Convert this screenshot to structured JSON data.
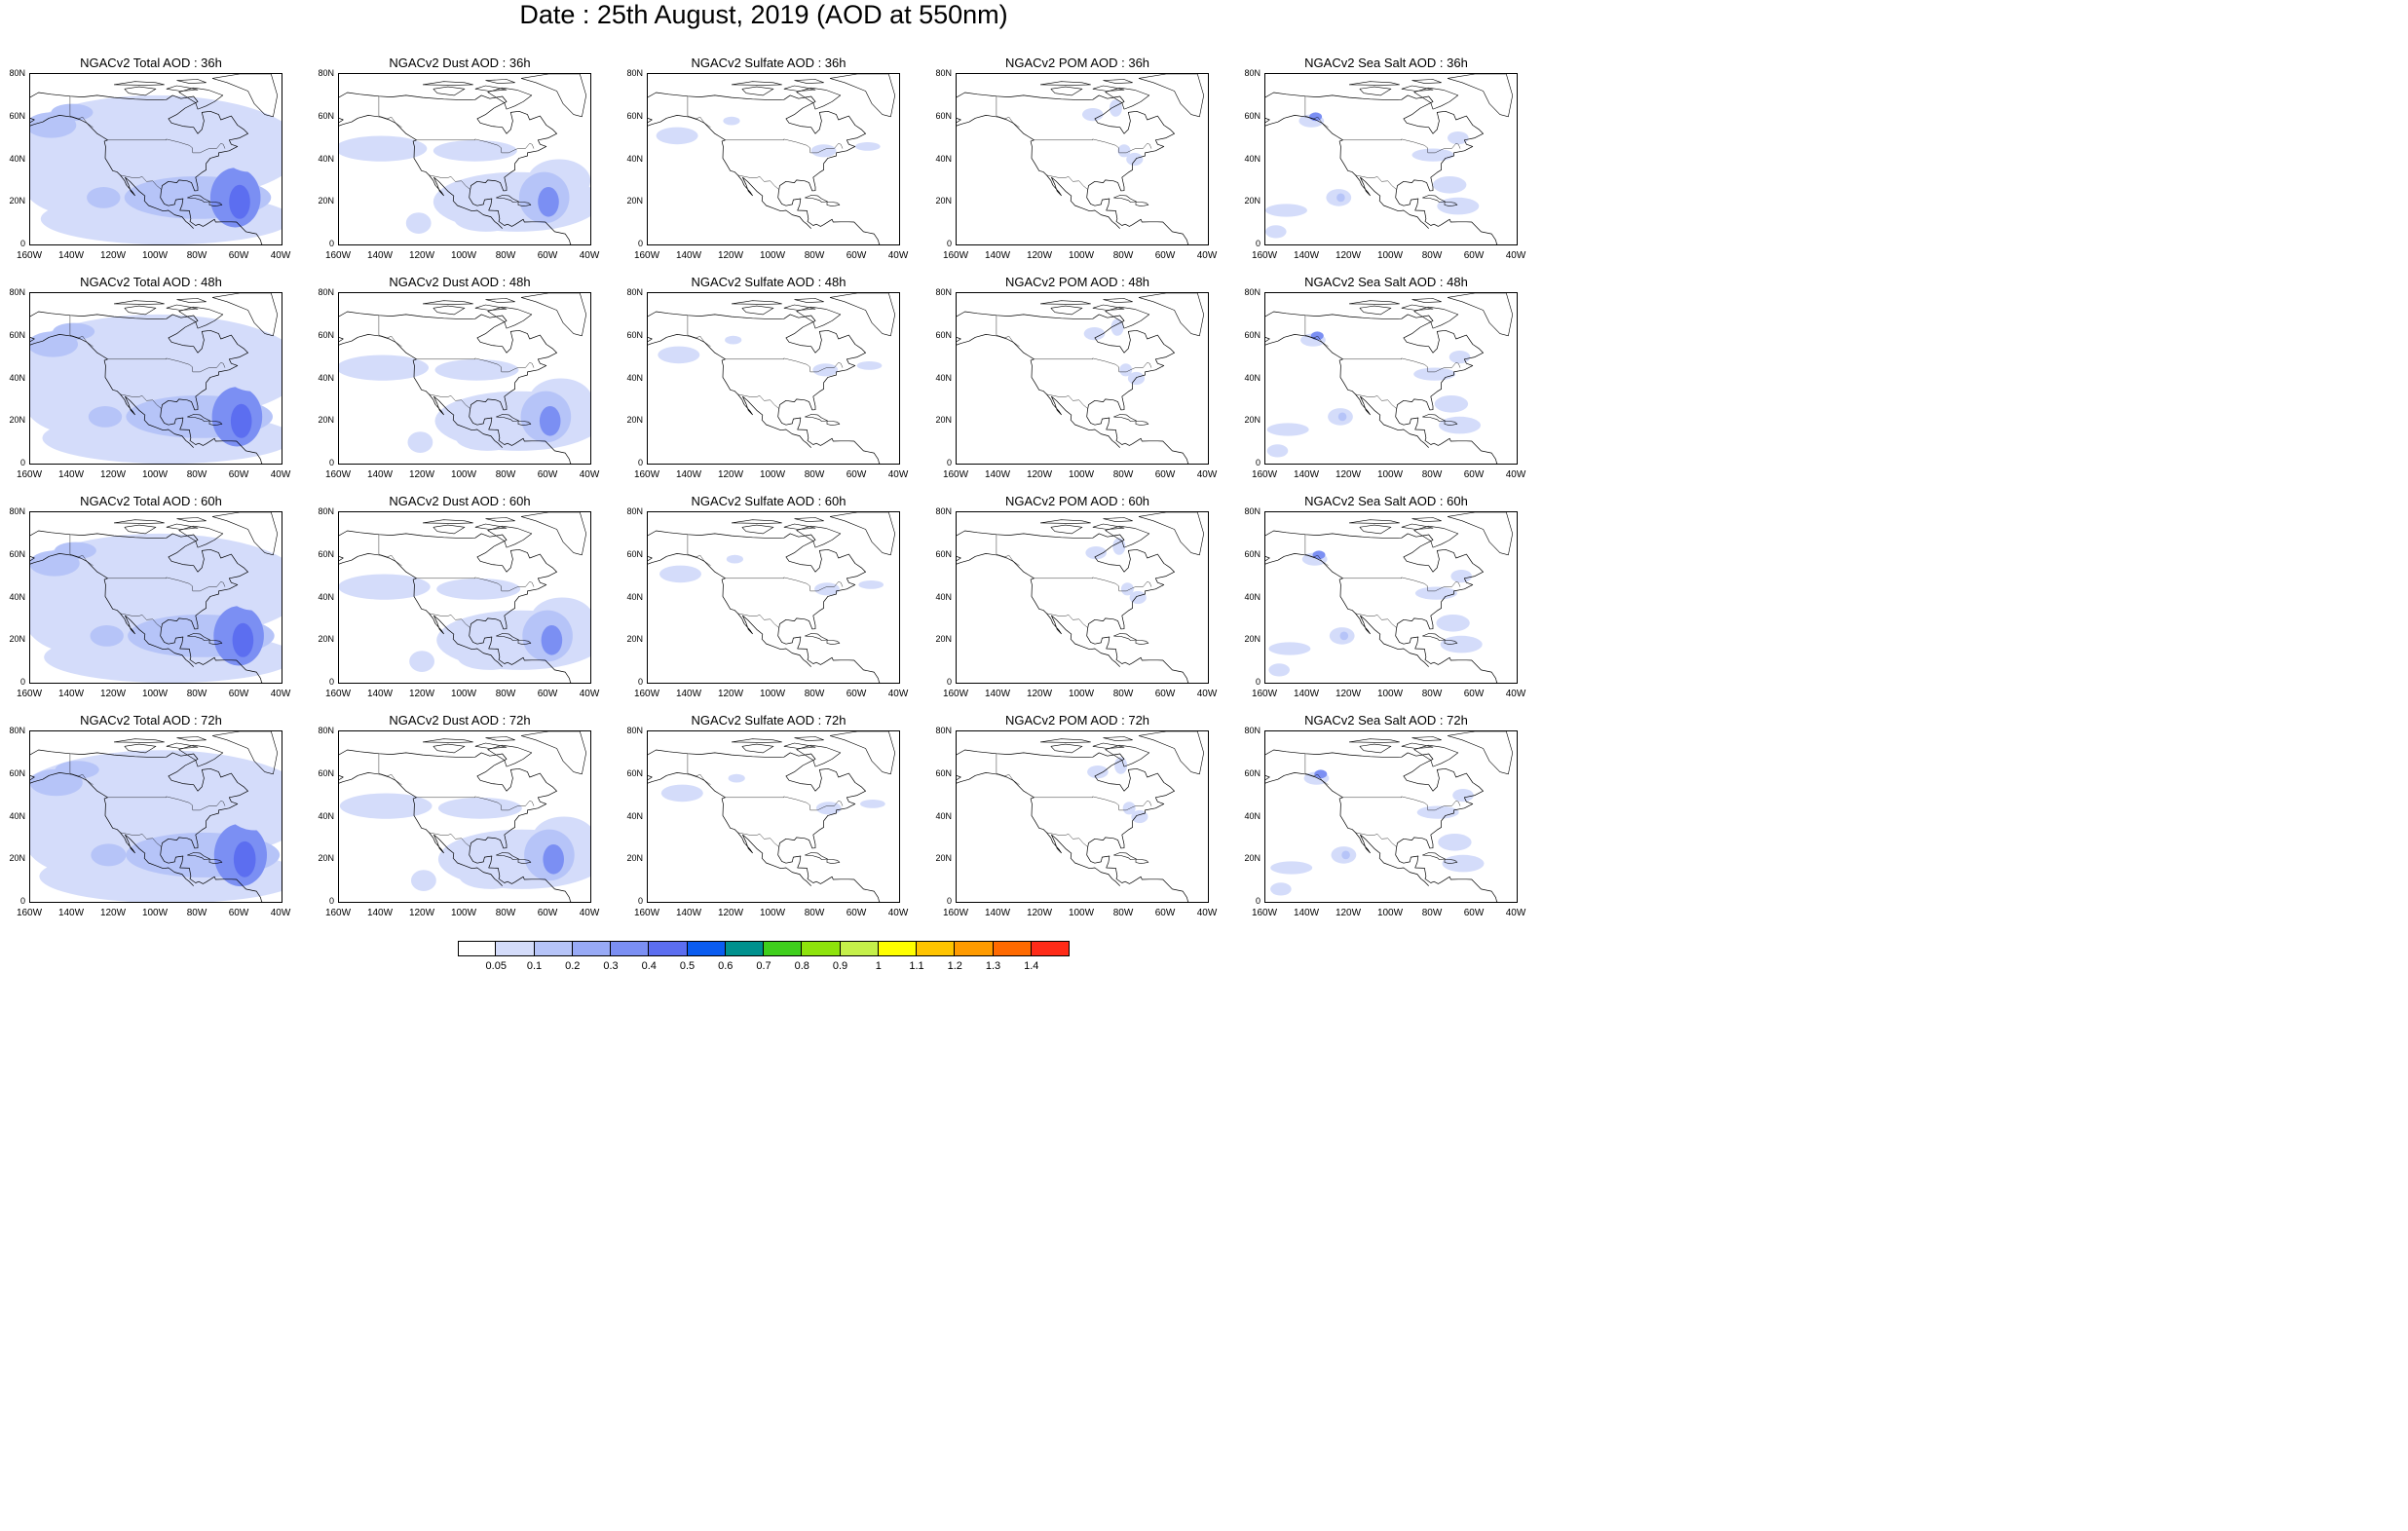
{
  "title": "Date : 25th August, 2019 (AOD at 550nm)",
  "panels": [
    {
      "title": "NGACv2 Total AOD : 36h",
      "species": "total",
      "hour": 36
    },
    {
      "title": "NGACv2 Dust AOD : 36h",
      "species": "dust",
      "hour": 36
    },
    {
      "title": "NGACv2 Sulfate AOD : 36h",
      "species": "sulfate",
      "hour": 36
    },
    {
      "title": "NGACv2 POM AOD : 36h",
      "species": "pom",
      "hour": 36
    },
    {
      "title": "NGACv2 Sea Salt AOD : 36h",
      "species": "seasalt",
      "hour": 36
    },
    {
      "title": "NGACv2 Total AOD : 48h",
      "species": "total",
      "hour": 48
    },
    {
      "title": "NGACv2 Dust AOD : 48h",
      "species": "dust",
      "hour": 48
    },
    {
      "title": "NGACv2 Sulfate AOD : 48h",
      "species": "sulfate",
      "hour": 48
    },
    {
      "title": "NGACv2 POM AOD : 48h",
      "species": "pom",
      "hour": 48
    },
    {
      "title": "NGACv2 Sea Salt AOD : 48h",
      "species": "seasalt",
      "hour": 48
    },
    {
      "title": "NGACv2 Total AOD : 60h",
      "species": "total",
      "hour": 60
    },
    {
      "title": "NGACv2 Dust AOD : 60h",
      "species": "dust",
      "hour": 60
    },
    {
      "title": "NGACv2 Sulfate AOD : 60h",
      "species": "sulfate",
      "hour": 60
    },
    {
      "title": "NGACv2 POM AOD : 60h",
      "species": "pom",
      "hour": 60
    },
    {
      "title": "NGACv2 Sea Salt AOD : 60h",
      "species": "seasalt",
      "hour": 60
    },
    {
      "title": "NGACv2 Total AOD : 72h",
      "species": "total",
      "hour": 72
    },
    {
      "title": "NGACv2 Dust AOD : 72h",
      "species": "dust",
      "hour": 72
    },
    {
      "title": "NGACv2 Sulfate AOD : 72h",
      "species": "sulfate",
      "hour": 72
    },
    {
      "title": "NGACv2 POM AOD : 72h",
      "species": "pom",
      "hour": 72
    },
    {
      "title": "NGACv2 Sea Salt  AOD : 72h",
      "species": "seasalt",
      "hour": 72
    }
  ],
  "axes": {
    "lat_ticks": [
      "80N",
      "60N",
      "40N",
      "20N",
      "0"
    ],
    "lon_ticks": [
      "160W",
      "140W",
      "120W",
      "100W",
      "80W",
      "60W",
      "40W"
    ],
    "lat_range": [
      0,
      80
    ],
    "lon_range": [
      -160,
      -40
    ]
  },
  "colorbar": {
    "colors": [
      "#ffffff",
      "#d4dcfa",
      "#b6c4f8",
      "#98aaf6",
      "#7b8ff3",
      "#5c6ef0",
      "#0a5cf0",
      "#00918e",
      "#3fcf1c",
      "#8ee30c",
      "#c5f04a",
      "#ffff00",
      "#ffc400",
      "#ff9b00",
      "#ff6a00",
      "#ff2b18"
    ],
    "labels": [
      "0.05",
      "0.1",
      "0.2",
      "0.3",
      "0.4",
      "0.5",
      "0.6",
      "0.7",
      "0.8",
      "0.9",
      "1",
      "1.1",
      "1.2",
      "1.3",
      "1.4"
    ]
  },
  "colors": {
    "aod_low": "#d4dcfa",
    "aod_mid": "#b6c4f8",
    "aod_high": "#7b8ff3",
    "aod_peak": "#5c6ef0"
  }
}
